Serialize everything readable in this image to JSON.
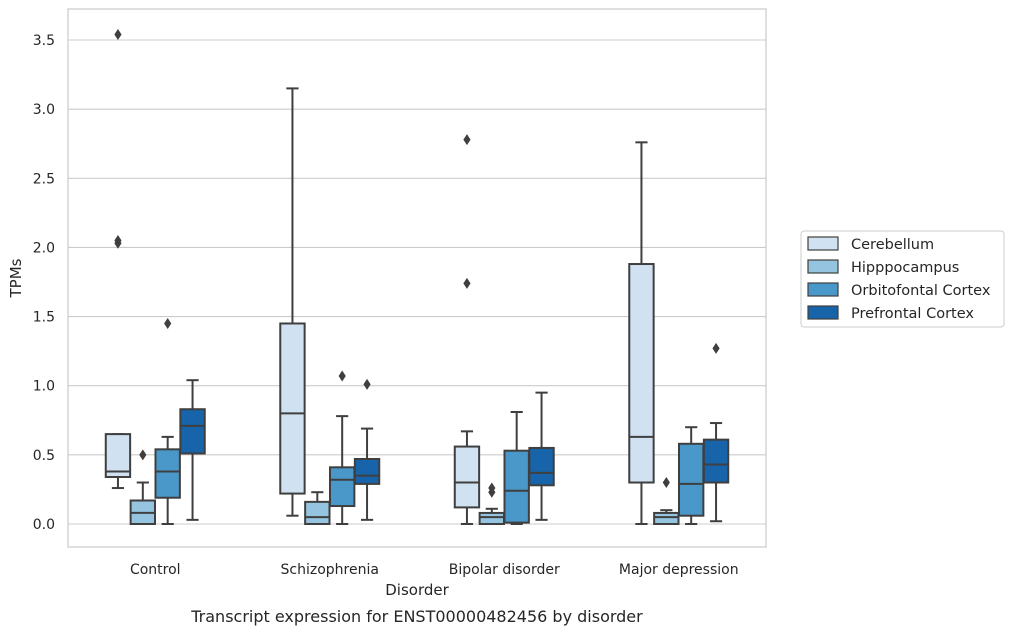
{
  "chart_data": {
    "type": "boxplot",
    "caption": "Transcript expression for ENST00000482456 by disorder",
    "xlabel": "Disorder",
    "ylabel": "TPMs",
    "ylim": [
      -0.17,
      3.72
    ],
    "yticks": [
      "0.0",
      "0.5",
      "1.0",
      "1.5",
      "2.0",
      "2.5",
      "3.0",
      "3.5"
    ],
    "grid": "horizontal",
    "legend_position": "right",
    "categories": [
      "Control",
      "Schizophrenia",
      "Bipolar disorder",
      "Major depression"
    ],
    "series": [
      {
        "name": "Cerebellum",
        "color": "#d0e1f2",
        "boxes": [
          {
            "whisker_low": 0.26,
            "q1": 0.34,
            "median": 0.38,
            "q3": 0.65,
            "whisker_high": 0.65,
            "outliers": [
              2.03,
              2.05,
              3.54
            ]
          },
          {
            "whisker_low": 0.06,
            "q1": 0.22,
            "median": 0.8,
            "q3": 1.45,
            "whisker_high": 3.15,
            "outliers": []
          },
          {
            "whisker_low": 0.0,
            "q1": 0.12,
            "median": 0.3,
            "q3": 0.56,
            "whisker_high": 0.67,
            "outliers": [
              1.74,
              2.78
            ]
          },
          {
            "whisker_low": 0.0,
            "q1": 0.3,
            "median": 0.63,
            "q3": 1.88,
            "whisker_high": 2.76,
            "outliers": []
          }
        ]
      },
      {
        "name": "Hipppocampus",
        "color": "#94c4df",
        "boxes": [
          {
            "whisker_low": 0.0,
            "q1": 0.0,
            "median": 0.08,
            "q3": 0.17,
            "whisker_high": 0.3,
            "outliers": [
              0.5
            ]
          },
          {
            "whisker_low": 0.0,
            "q1": 0.0,
            "median": 0.05,
            "q3": 0.16,
            "whisker_high": 0.23,
            "outliers": []
          },
          {
            "whisker_low": 0.0,
            "q1": 0.0,
            "median": 0.05,
            "q3": 0.08,
            "whisker_high": 0.11,
            "outliers": [
              0.23,
              0.26
            ]
          },
          {
            "whisker_low": 0.0,
            "q1": 0.0,
            "median": 0.05,
            "q3": 0.08,
            "whisker_high": 0.1,
            "outliers": [
              0.3
            ]
          }
        ]
      },
      {
        "name": "Orbitofontal Cortex",
        "color": "#4a98c9",
        "boxes": [
          {
            "whisker_low": 0.0,
            "q1": 0.19,
            "median": 0.38,
            "q3": 0.54,
            "whisker_high": 0.63,
            "outliers": [
              1.45
            ]
          },
          {
            "whisker_low": 0.0,
            "q1": 0.13,
            "median": 0.32,
            "q3": 0.41,
            "whisker_high": 0.78,
            "outliers": [
              1.07
            ]
          },
          {
            "whisker_low": 0.0,
            "q1": 0.01,
            "median": 0.24,
            "q3": 0.53,
            "whisker_high": 0.81,
            "outliers": []
          },
          {
            "whisker_low": 0.0,
            "q1": 0.06,
            "median": 0.29,
            "q3": 0.58,
            "whisker_high": 0.7,
            "outliers": []
          }
        ]
      },
      {
        "name": "Prefrontal Cortex",
        "color": "#1764ab",
        "boxes": [
          {
            "whisker_low": 0.03,
            "q1": 0.51,
            "median": 0.71,
            "q3": 0.83,
            "whisker_high": 1.04,
            "outliers": []
          },
          {
            "whisker_low": 0.03,
            "q1": 0.29,
            "median": 0.35,
            "q3": 0.47,
            "whisker_high": 0.69,
            "outliers": [
              1.01
            ]
          },
          {
            "whisker_low": 0.03,
            "q1": 0.28,
            "median": 0.37,
            "q3": 0.55,
            "whisker_high": 0.95,
            "outliers": []
          },
          {
            "whisker_low": 0.02,
            "q1": 0.3,
            "median": 0.43,
            "q3": 0.61,
            "whisker_high": 0.73,
            "outliers": [
              1.27
            ]
          }
        ]
      }
    ]
  }
}
